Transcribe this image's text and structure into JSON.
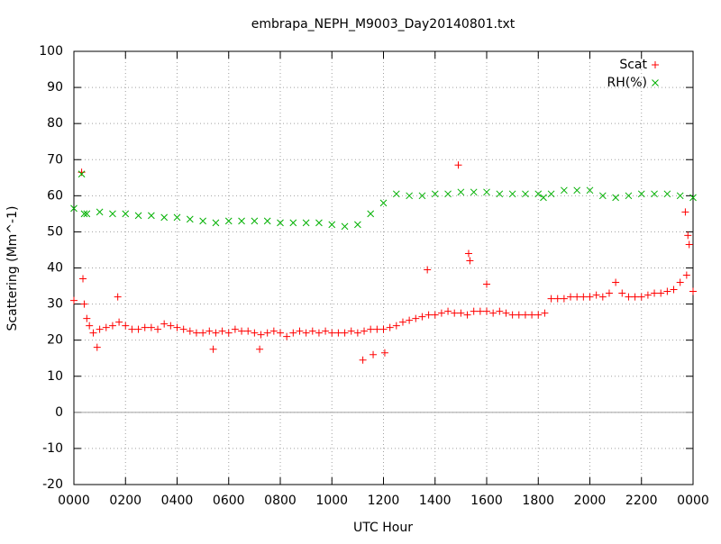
{
  "chart_data": {
    "type": "scatter",
    "title": "embrapa_NEPH_M9003_Day20140801.txt",
    "x_label": "UTC Hour",
    "y_label": "Scattering (Mm^-1)",
    "xlim": [
      0,
      24
    ],
    "xticks": [
      {
        "value": 0,
        "label": "0000"
      },
      {
        "value": 2,
        "label": "0200"
      },
      {
        "value": 4,
        "label": "0400"
      },
      {
        "value": 6,
        "label": "0600"
      },
      {
        "value": 8,
        "label": "0800"
      },
      {
        "value": 10,
        "label": "1000"
      },
      {
        "value": 12,
        "label": "1200"
      },
      {
        "value": 14,
        "label": "1400"
      },
      {
        "value": 16,
        "label": "1600"
      },
      {
        "value": 18,
        "label": "1800"
      },
      {
        "value": 20,
        "label": "2000"
      },
      {
        "value": 22,
        "label": "2200"
      },
      {
        "value": 24,
        "label": "0000"
      }
    ],
    "ylim": [
      -20,
      100
    ],
    "yticks": [
      -20,
      -10,
      0,
      10,
      20,
      30,
      40,
      50,
      60,
      70,
      80,
      90,
      100
    ],
    "grid": true,
    "legend": "top-right",
    "series": [
      {
        "name": "Scat",
        "color": "#ff0000",
        "marker": "plus",
        "x": [
          0,
          0.3,
          0.35,
          0.4,
          0.5,
          0.6,
          0.75,
          1,
          1.25,
          1.5,
          1.75,
          2,
          2.25,
          2.5,
          2.75,
          3,
          3.25,
          3.5,
          3.75,
          4,
          4.25,
          4.5,
          4.75,
          5,
          5.25,
          5.5,
          5.75,
          6,
          6.25,
          6.5,
          6.75,
          7,
          7.25,
          7.5,
          7.75,
          8,
          8.25,
          8.5,
          8.75,
          9,
          9.25,
          9.5,
          9.75,
          10,
          10.25,
          10.5,
          10.75,
          11,
          11.25,
          11.5,
          11.75,
          12,
          12.25,
          12.5,
          12.75,
          13,
          13.25,
          13.5,
          13.75,
          14,
          14.25,
          14.5,
          14.75,
          15,
          15.25,
          15.5,
          15.75,
          16,
          16.25,
          16.5,
          16.75,
          17,
          17.25,
          17.5,
          17.75,
          18,
          18.25,
          18.5,
          18.75,
          19,
          19.25,
          19.5,
          19.75,
          20,
          20.25,
          20.5,
          20.75,
          21,
          21.25,
          21.5,
          21.75,
          22,
          22.25,
          22.5,
          22.75,
          23,
          23.25,
          23.5,
          23.75,
          24,
          0.9,
          1.7,
          5.4,
          7.2,
          11.2,
          11.6,
          12.05,
          13.7,
          14.9,
          15.3,
          15.35,
          16.0,
          23.7,
          23.8,
          23.85
        ],
        "values": [
          31,
          66.5,
          37,
          30,
          26,
          24,
          22,
          23,
          23.5,
          24,
          25,
          24,
          23,
          23,
          23.5,
          23.5,
          23,
          24.5,
          24,
          23.5,
          23,
          22.5,
          22,
          22,
          22.5,
          22,
          22.5,
          22,
          23,
          22.5,
          22.5,
          22,
          21.5,
          22,
          22.5,
          22,
          21,
          22,
          22.5,
          22,
          22.5,
          22,
          22.5,
          22,
          22,
          22,
          22.5,
          22,
          22.5,
          23,
          23,
          23,
          23.5,
          24,
          25,
          25.5,
          26,
          26.5,
          27,
          27,
          27.5,
          28,
          27.5,
          27.5,
          27,
          28,
          28,
          28,
          27.5,
          28,
          27.5,
          27,
          27,
          27,
          27,
          27,
          27.5,
          31.5,
          31.5,
          31.5,
          32,
          32,
          32,
          32,
          32.5,
          32,
          33,
          36,
          33,
          32,
          32,
          32,
          32.5,
          33,
          33,
          33.5,
          34,
          36,
          38,
          33.5,
          18,
          32,
          17.5,
          17.5,
          14.5,
          16,
          16.5,
          39.5,
          68.5,
          44,
          42,
          35.5,
          55.5,
          49,
          46.5
        ]
      },
      {
        "name": "RH(%)",
        "color": "#00b000",
        "marker": "cross",
        "x": [
          0,
          0.3,
          0.4,
          0.5,
          1,
          1.5,
          2,
          2.5,
          3,
          3.5,
          4,
          4.5,
          5,
          5.5,
          6,
          6.5,
          7,
          7.5,
          8,
          8.5,
          9,
          9.5,
          10,
          10.5,
          11,
          11.5,
          12,
          12.5,
          13,
          13.5,
          14,
          14.5,
          15,
          15.5,
          16,
          16.5,
          17,
          17.5,
          18,
          18.2,
          18.5,
          19,
          19.5,
          20,
          20.5,
          21,
          21.5,
          22,
          22.5,
          23,
          23.5,
          24
        ],
        "values": [
          56.5,
          66,
          55,
          55,
          55.5,
          55,
          55,
          54.5,
          54.5,
          54,
          54,
          53.5,
          53,
          52.5,
          53,
          53,
          53,
          53,
          52.5,
          52.5,
          52.5,
          52.5,
          52,
          51.5,
          52,
          55,
          58,
          60.5,
          60,
          60,
          60.5,
          60.5,
          61,
          61,
          61,
          60.5,
          60.5,
          60.5,
          60.5,
          59.5,
          60.5,
          61.5,
          61.5,
          61.5,
          60,
          59.5,
          60,
          60.5,
          60.5,
          60.5,
          60,
          59.5
        ]
      }
    ]
  }
}
